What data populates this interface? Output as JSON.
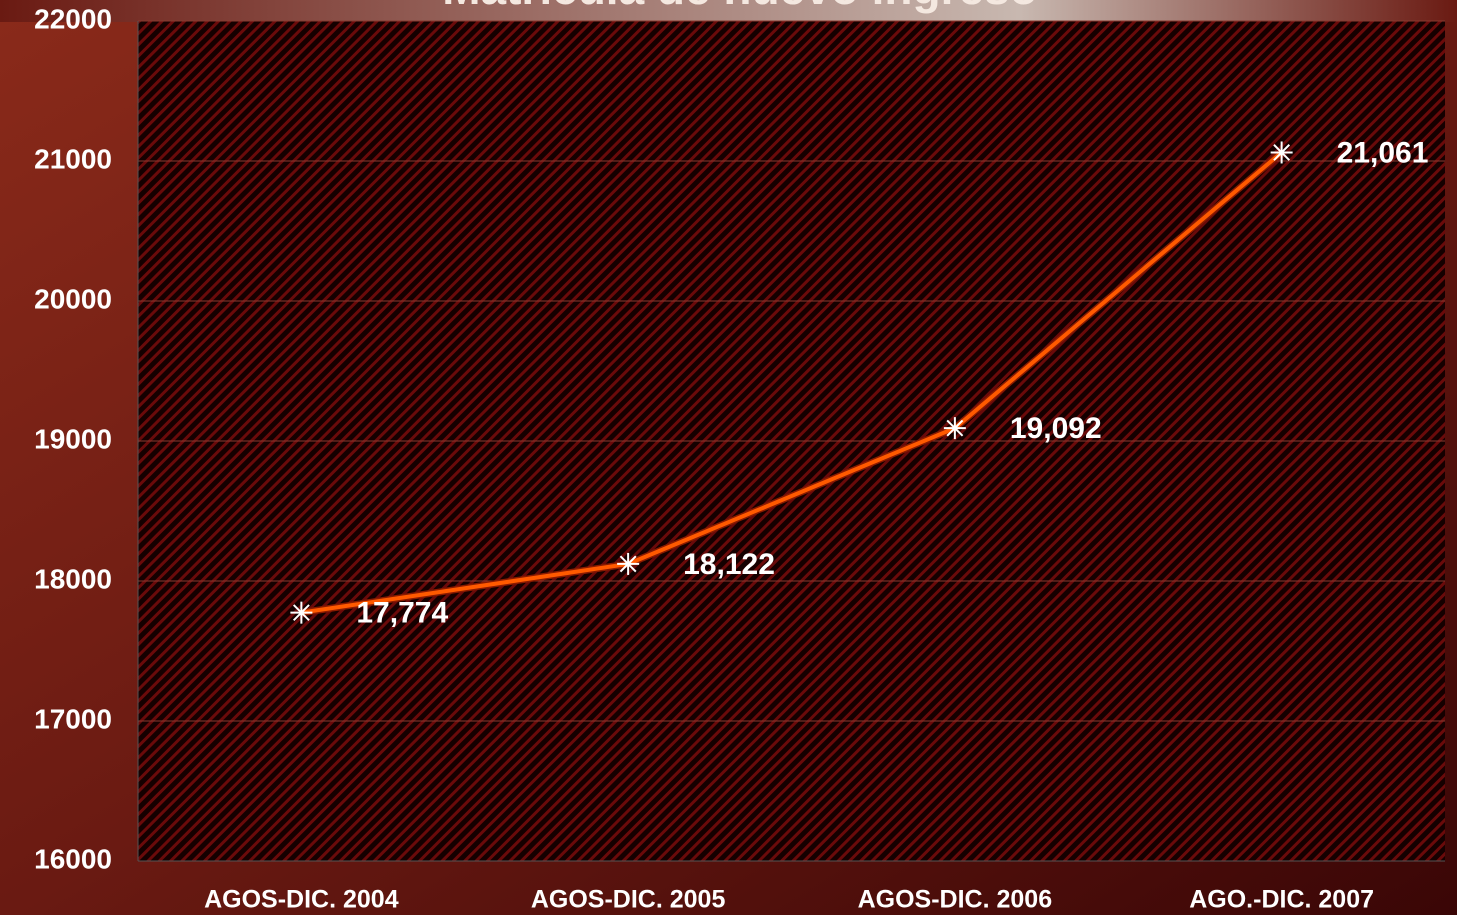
{
  "chart_data": {
    "type": "line",
    "title": "Matrícula de nuevo ingreso",
    "categories": [
      "AGOS-DIC. 2004",
      "AGOS-DIC. 2005",
      "AGOS-DIC. 2006",
      "AGO.-DIC. 2007"
    ],
    "values": [
      17774,
      18122,
      19092,
      21061
    ],
    "value_labels": [
      "17,774",
      "18,122",
      "19,092",
      "21,061"
    ],
    "color": "#ff5a00",
    "ylim": [
      16000,
      22000
    ],
    "yticks": [
      16000,
      17000,
      18000,
      19000,
      20000,
      21000,
      22000
    ],
    "grid": true
  }
}
